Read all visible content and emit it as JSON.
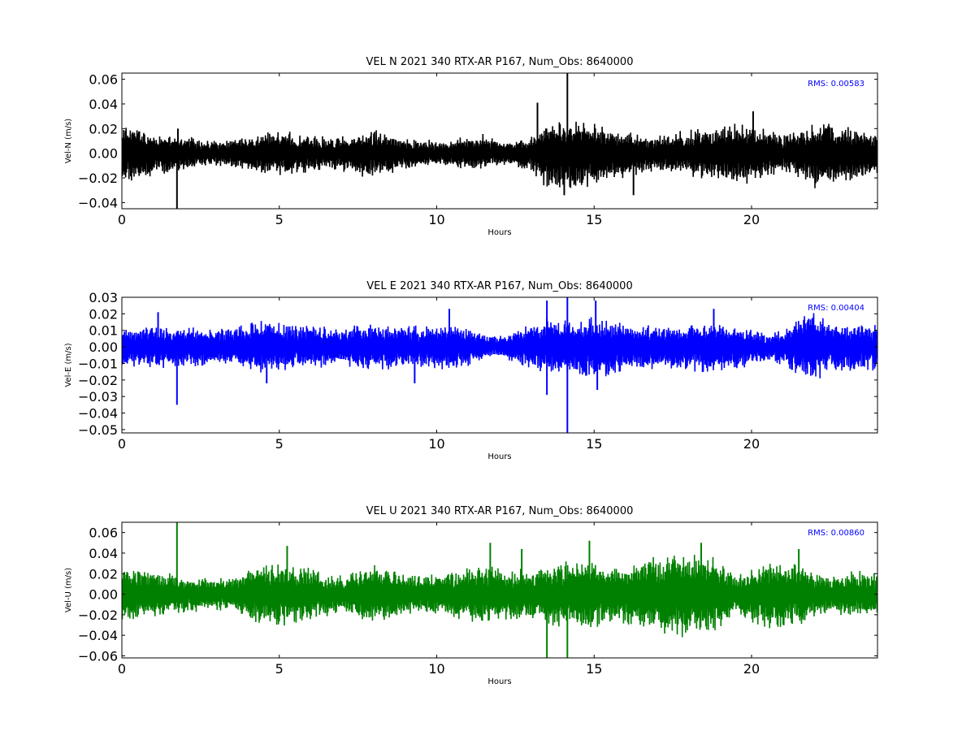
{
  "chart_data": [
    {
      "type": "line",
      "title": "VEL N 2021 340 RTX-AR  P167, Num_Obs: 8640000",
      "xlabel": "Hours",
      "ylabel": "Vel-N (m/s)",
      "xlim": [
        0,
        24
      ],
      "ylim": [
        -0.045,
        0.065
      ],
      "xticks": [
        0,
        5,
        10,
        15,
        20
      ],
      "yticks": [
        -0.04,
        -0.02,
        0.0,
        0.02,
        0.04,
        0.06
      ],
      "color": "#000000",
      "rms_label": "RMS:  0.00583",
      "envelope": {
        "x": [
          0,
          0.5,
          1,
          1.5,
          2,
          2.5,
          3,
          3.5,
          4,
          4.5,
          5,
          5.5,
          6,
          6.5,
          7,
          7.5,
          8,
          8.5,
          9,
          9.5,
          10,
          10.5,
          11,
          11.5,
          12,
          12.5,
          13,
          13.5,
          14,
          14.5,
          15,
          15.5,
          16,
          16.5,
          17,
          17.5,
          18,
          18.5,
          19,
          19.5,
          20,
          20.5,
          21,
          21.5,
          22,
          22.5,
          23,
          23.5,
          24
        ],
        "hi": [
          0.025,
          0.022,
          0.018,
          0.017,
          0.016,
          0.012,
          0.011,
          0.012,
          0.014,
          0.018,
          0.019,
          0.017,
          0.016,
          0.015,
          0.016,
          0.019,
          0.02,
          0.018,
          0.014,
          0.012,
          0.01,
          0.012,
          0.014,
          0.016,
          0.012,
          0.01,
          0.014,
          0.026,
          0.03,
          0.028,
          0.026,
          0.022,
          0.018,
          0.017,
          0.016,
          0.018,
          0.02,
          0.022,
          0.023,
          0.026,
          0.024,
          0.022,
          0.016,
          0.02,
          0.028,
          0.025,
          0.024,
          0.022,
          0.018
        ],
        "lo": [
          -0.027,
          -0.024,
          -0.02,
          -0.017,
          -0.015,
          -0.012,
          -0.011,
          -0.012,
          -0.014,
          -0.018,
          -0.019,
          -0.017,
          -0.016,
          -0.015,
          -0.016,
          -0.019,
          -0.02,
          -0.018,
          -0.014,
          -0.011,
          -0.01,
          -0.012,
          -0.014,
          -0.016,
          -0.012,
          -0.011,
          -0.016,
          -0.03,
          -0.035,
          -0.032,
          -0.028,
          -0.024,
          -0.02,
          -0.018,
          -0.016,
          -0.018,
          -0.02,
          -0.022,
          -0.024,
          -0.027,
          -0.026,
          -0.022,
          -0.016,
          -0.022,
          -0.03,
          -0.028,
          -0.025,
          -0.022,
          -0.018
        ]
      },
      "spikes": [
        [
          1.75,
          -0.045
        ],
        [
          1.78,
          0.02
        ],
        [
          13.2,
          0.041
        ],
        [
          14.15,
          0.065
        ],
        [
          14.05,
          -0.034
        ],
        [
          16.25,
          -0.034
        ],
        [
          20.05,
          0.034
        ]
      ]
    },
    {
      "type": "line",
      "title": "VEL E 2021 340 RTX-AR  P167, Num_Obs: 8640000",
      "xlabel": "Hours",
      "ylabel": "Vel-E (m/s)",
      "xlim": [
        0,
        24
      ],
      "ylim": [
        -0.052,
        0.03
      ],
      "xticks": [
        0,
        5,
        10,
        15,
        20
      ],
      "yticks": [
        -0.05,
        -0.04,
        -0.03,
        -0.02,
        -0.01,
        0.0,
        0.01,
        0.02,
        0.03
      ],
      "color": "#0000ff",
      "rms_label": "RMS:  0.00404",
      "envelope": {
        "x": [
          0,
          0.5,
          1,
          1.5,
          2,
          2.5,
          3,
          3.5,
          4,
          4.5,
          5,
          5.5,
          6,
          6.5,
          7,
          7.5,
          8,
          8.5,
          9,
          9.5,
          10,
          10.5,
          11,
          11.5,
          12,
          12.5,
          13,
          13.5,
          14,
          14.5,
          15,
          15.5,
          16,
          16.5,
          17,
          17.5,
          18,
          18.5,
          19,
          19.5,
          20,
          20.5,
          21,
          21.5,
          22,
          22.5,
          23,
          23.5,
          24
        ],
        "hi": [
          0.013,
          0.014,
          0.014,
          0.013,
          0.013,
          0.012,
          0.011,
          0.012,
          0.015,
          0.017,
          0.015,
          0.014,
          0.014,
          0.013,
          0.012,
          0.014,
          0.015,
          0.014,
          0.014,
          0.013,
          0.014,
          0.015,
          0.013,
          0.009,
          0.007,
          0.01,
          0.016,
          0.018,
          0.017,
          0.018,
          0.019,
          0.017,
          0.015,
          0.014,
          0.014,
          0.013,
          0.014,
          0.015,
          0.015,
          0.013,
          0.011,
          0.009,
          0.01,
          0.018,
          0.022,
          0.016,
          0.015,
          0.015,
          0.015
        ],
        "lo": [
          -0.013,
          -0.014,
          -0.014,
          -0.013,
          -0.013,
          -0.012,
          -0.011,
          -0.012,
          -0.015,
          -0.016,
          -0.015,
          -0.014,
          -0.014,
          -0.013,
          -0.012,
          -0.014,
          -0.015,
          -0.014,
          -0.014,
          -0.013,
          -0.014,
          -0.015,
          -0.012,
          -0.008,
          -0.007,
          -0.011,
          -0.017,
          -0.018,
          -0.018,
          -0.019,
          -0.021,
          -0.018,
          -0.016,
          -0.015,
          -0.015,
          -0.014,
          -0.015,
          -0.016,
          -0.016,
          -0.014,
          -0.012,
          -0.01,
          -0.011,
          -0.018,
          -0.022,
          -0.017,
          -0.016,
          -0.016,
          -0.015
        ]
      },
      "spikes": [
        [
          1.75,
          -0.035
        ],
        [
          1.15,
          0.021
        ],
        [
          4.6,
          -0.022
        ],
        [
          9.3,
          -0.022
        ],
        [
          10.4,
          0.023
        ],
        [
          13.5,
          -0.029
        ],
        [
          13.5,
          0.028
        ],
        [
          14.15,
          0.03
        ],
        [
          14.15,
          -0.052
        ],
        [
          15.05,
          0.028
        ],
        [
          15.1,
          -0.026
        ],
        [
          18.8,
          0.023
        ]
      ]
    },
    {
      "type": "line",
      "title": "VEL U 2021 340 RTX-AR  P167, Num_Obs: 8640000",
      "xlabel": "Hours",
      "ylabel": "Vel-U (m/s)",
      "xlim": [
        0,
        24
      ],
      "ylim": [
        -0.062,
        0.07
      ],
      "xticks": [
        0,
        5,
        10,
        15,
        20
      ],
      "yticks": [
        -0.06,
        -0.04,
        -0.02,
        0.0,
        0.02,
        0.04,
        0.06
      ],
      "color": "#008000",
      "rms_label": "RMS:  0.00860",
      "envelope": {
        "x": [
          0,
          0.5,
          1,
          1.5,
          2,
          2.5,
          3,
          3.5,
          4,
          4.5,
          5,
          5.5,
          6,
          6.5,
          7,
          7.5,
          8,
          8.5,
          9,
          9.5,
          10,
          10.5,
          11,
          11.5,
          12,
          12.5,
          13,
          13.5,
          14,
          14.5,
          15,
          15.5,
          16,
          16.5,
          17,
          17.5,
          18,
          18.5,
          19,
          19.5,
          20,
          20.5,
          21,
          21.5,
          22,
          22.5,
          23,
          23.5,
          24
        ],
        "hi": [
          0.028,
          0.026,
          0.024,
          0.022,
          0.02,
          0.018,
          0.018,
          0.016,
          0.026,
          0.03,
          0.032,
          0.028,
          0.026,
          0.022,
          0.018,
          0.024,
          0.03,
          0.028,
          0.022,
          0.02,
          0.02,
          0.024,
          0.026,
          0.032,
          0.028,
          0.026,
          0.024,
          0.028,
          0.032,
          0.036,
          0.034,
          0.028,
          0.03,
          0.034,
          0.038,
          0.04,
          0.042,
          0.04,
          0.036,
          0.02,
          0.028,
          0.034,
          0.036,
          0.032,
          0.022,
          0.018,
          0.022,
          0.024,
          0.022
        ],
        "lo": [
          -0.026,
          -0.026,
          -0.024,
          -0.022,
          -0.02,
          -0.018,
          -0.018,
          -0.016,
          -0.026,
          -0.032,
          -0.034,
          -0.03,
          -0.026,
          -0.022,
          -0.018,
          -0.024,
          -0.03,
          -0.028,
          -0.022,
          -0.02,
          -0.02,
          -0.024,
          -0.028,
          -0.034,
          -0.03,
          -0.026,
          -0.026,
          -0.03,
          -0.034,
          -0.038,
          -0.036,
          -0.03,
          -0.032,
          -0.036,
          -0.04,
          -0.042,
          -0.044,
          -0.04,
          -0.036,
          -0.022,
          -0.03,
          -0.036,
          -0.038,
          -0.034,
          -0.024,
          -0.02,
          -0.022,
          -0.024,
          -0.022
        ]
      },
      "spikes": [
        [
          1.75,
          0.07
        ],
        [
          5.25,
          0.047
        ],
        [
          11.7,
          0.05
        ],
        [
          13.5,
          -0.062
        ],
        [
          12.7,
          0.044
        ],
        [
          14.15,
          -0.062
        ],
        [
          14.85,
          0.052
        ],
        [
          18.4,
          0.05
        ],
        [
          21.5,
          0.044
        ]
      ]
    }
  ]
}
